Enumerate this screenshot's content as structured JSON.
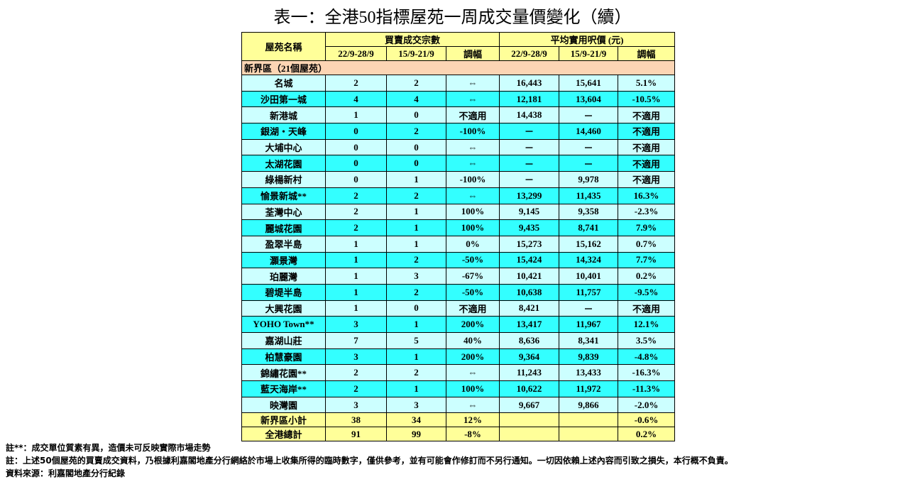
{
  "title": "表一：全港50指標屋苑一周成交量價變化（續）",
  "table": {
    "header": {
      "name": "屋苑名稱",
      "group1": "買賣成交宗數",
      "group2": "平均實用呎價 (元)",
      "subheaders": [
        "22/9-28/9",
        "15/9-21/9",
        "調幅",
        "22/9-28/9",
        "15/9-21/9",
        "調幅"
      ]
    },
    "section": "新界區（21個屋苑）",
    "rows": [
      [
        "名城",
        "2",
        "2",
        "⇔",
        "16,443",
        "15,641",
        "5.1%"
      ],
      [
        "沙田第一城",
        "4",
        "4",
        "⇔",
        "12,181",
        "13,604",
        "-10.5%"
      ],
      [
        "新港城",
        "1",
        "0",
        "不適用",
        "14,438",
        "－",
        "不適用"
      ],
      [
        "銀湖・天峰",
        "0",
        "2",
        "-100%",
        "－",
        "14,460",
        "不適用"
      ],
      [
        "大埔中心",
        "0",
        "0",
        "⇔",
        "－",
        "－",
        "不適用"
      ],
      [
        "太湖花園",
        "0",
        "0",
        "⇔",
        "－",
        "－",
        "不適用"
      ],
      [
        "綠楊新村",
        "0",
        "1",
        "-100%",
        "－",
        "9,978",
        "不適用"
      ],
      [
        "愉景新城**",
        "2",
        "2",
        "⇔",
        "13,299",
        "11,435",
        "16.3%"
      ],
      [
        "荃灣中心",
        "2",
        "1",
        "100%",
        "9,145",
        "9,358",
        "-2.3%"
      ],
      [
        "麗城花園",
        "2",
        "1",
        "100%",
        "9,435",
        "8,741",
        "7.9%"
      ],
      [
        "盈翠半島",
        "1",
        "1",
        "0%",
        "15,273",
        "15,162",
        "0.7%"
      ],
      [
        "灝景灣",
        "1",
        "2",
        "-50%",
        "15,424",
        "14,324",
        "7.7%"
      ],
      [
        "珀麗灣",
        "1",
        "3",
        "-67%",
        "10,421",
        "10,401",
        "0.2%"
      ],
      [
        "碧堤半島",
        "1",
        "2",
        "-50%",
        "10,638",
        "11,757",
        "-9.5%"
      ],
      [
        "大興花園",
        "1",
        "0",
        "不適用",
        "8,421",
        "－",
        "不適用"
      ],
      [
        "YOHO Town**",
        "3",
        "1",
        "200%",
        "13,417",
        "11,967",
        "12.1%"
      ],
      [
        "嘉湖山莊",
        "7",
        "5",
        "40%",
        "8,636",
        "8,341",
        "3.5%"
      ],
      [
        "柏慧豪園",
        "3",
        "1",
        "200%",
        "9,364",
        "9,839",
        "-4.8%"
      ],
      [
        "錦繡花園**",
        "2",
        "2",
        "⇔",
        "11,243",
        "13,433",
        "-16.3%"
      ],
      [
        "藍天海岸**",
        "2",
        "1",
        "100%",
        "10,622",
        "11,972",
        "-11.3%"
      ],
      [
        "映灣園",
        "3",
        "3",
        "⇔",
        "9,667",
        "9,866",
        "-2.0%"
      ]
    ],
    "totals": [
      [
        "新界區小計",
        "38",
        "34",
        "12%",
        "-0.6%"
      ],
      [
        "全港總計",
        "91",
        "99",
        "-8%",
        "0.2%"
      ]
    ]
  },
  "notes": [
    "註**：成交單位質素有異，造價未可反映實際市場走勢",
    "註：上述50個屋苑的買賣成交資料，乃根據利嘉閣地產分行網絡於市場上收集所得的臨時數字，僅供參考，並有可能會作修訂而不另行通知。一切因依賴上述內容而引致之損失，本行概不負責。",
    "資料來源：利嘉閣地產分行紀錄"
  ]
}
